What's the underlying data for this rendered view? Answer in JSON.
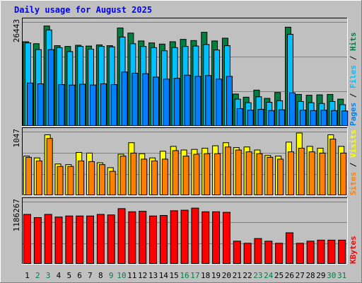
{
  "chart_data": [
    {
      "type": "bar",
      "title": "Daily usage for August 2025",
      "panel": "top",
      "categories": [
        "1",
        "2",
        "3",
        "4",
        "5",
        "6",
        "7",
        "8",
        "9",
        "10",
        "11",
        "12",
        "13",
        "14",
        "15",
        "16",
        "17",
        "18",
        "19",
        "20",
        "21",
        "22",
        "23",
        "24",
        "25",
        "26",
        "27",
        "28",
        "29",
        "30",
        "31"
      ],
      "ylim": [
        0,
        26443
      ],
      "yticks": [
        "26443"
      ],
      "legend_parts": [
        "Pages",
        "Files",
        "Hits"
      ],
      "series": [
        {
          "name": "Hits",
          "values": [
            21500,
            21000,
            25500,
            20500,
            20300,
            20600,
            20400,
            20700,
            20500,
            25000,
            23700,
            21700,
            21200,
            20900,
            21500,
            22100,
            21800,
            23900,
            21700,
            22400,
            8200,
            7400,
            9200,
            7100,
            8600,
            25200,
            8100,
            7900,
            8000,
            8100,
            6900
          ]
        },
        {
          "name": "Files",
          "values": [
            21200,
            19500,
            24500,
            20000,
            19000,
            20300,
            19600,
            20300,
            20200,
            22700,
            21000,
            20300,
            20000,
            19200,
            20000,
            20300,
            20400,
            20800,
            19400,
            20500,
            6900,
            6000,
            7500,
            6100,
            6500,
            23400,
            6300,
            6000,
            5800,
            6300,
            5500
          ]
        },
        {
          "name": "Pages",
          "values": [
            11000,
            10800,
            19500,
            10600,
            10500,
            10700,
            10500,
            10800,
            10600,
            13800,
            13500,
            13400,
            12500,
            12000,
            12200,
            13000,
            12700,
            12900,
            12000,
            12700,
            4500,
            4100,
            4300,
            4000,
            4200,
            8500,
            4100,
            4000,
            4100,
            4000,
            3900
          ]
        }
      ]
    },
    {
      "type": "bar",
      "panel": "middle",
      "categories": [
        "1",
        "2",
        "3",
        "4",
        "5",
        "6",
        "7",
        "8",
        "9",
        "10",
        "11",
        "12",
        "13",
        "14",
        "15",
        "16",
        "17",
        "18",
        "19",
        "20",
        "21",
        "22",
        "23",
        "24",
        "25",
        "26",
        "27",
        "28",
        "29",
        "30",
        "31"
      ],
      "ylim": [
        0,
        1047
      ],
      "yticks": [
        "1047"
      ],
      "legend_parts": [
        "Sites",
        "Visits"
      ],
      "series": [
        {
          "name": "Visits",
          "values": [
            650,
            620,
            1000,
            520,
            510,
            710,
            700,
            540,
            460,
            680,
            870,
            690,
            620,
            730,
            810,
            750,
            760,
            780,
            820,
            870,
            790,
            800,
            750,
            660,
            650,
            880,
            1030,
            810,
            780,
            1000,
            810
          ]
        },
        {
          "name": "Sites",
          "values": [
            630,
            570,
            940,
            480,
            480,
            570,
            560,
            510,
            400,
            650,
            700,
            600,
            570,
            600,
            740,
            650,
            680,
            690,
            690,
            800,
            750,
            720,
            690,
            630,
            600,
            720,
            780,
            720,
            700,
            930,
            700
          ]
        }
      ]
    },
    {
      "type": "bar",
      "panel": "bottom",
      "categories": [
        "1",
        "2",
        "3",
        "4",
        "5",
        "6",
        "7",
        "8",
        "9",
        "10",
        "11",
        "12",
        "13",
        "14",
        "15",
        "16",
        "17",
        "18",
        "19",
        "20",
        "21",
        "22",
        "23",
        "24",
        "25",
        "26",
        "27",
        "28",
        "29",
        "30",
        "31"
      ],
      "ylim": [
        0,
        1186267
      ],
      "yticks": [
        "1186267"
      ],
      "legend_parts": [
        "KBytes"
      ],
      "series": [
        {
          "name": "KBytes",
          "values": [
            950000,
            890000,
            950000,
            900000,
            920000,
            920000,
            920000,
            950000,
            940000,
            1060000,
            1000000,
            1010000,
            920000,
            930000,
            1020000,
            1030000,
            1070000,
            1000000,
            1000000,
            990000,
            440000,
            400000,
            490000,
            440000,
            400000,
            600000,
            400000,
            440000,
            460000,
            460000,
            460000
          ]
        }
      ]
    }
  ],
  "colors": {
    "hits": "#008040",
    "files": "#00c0ff",
    "pages": "#0080ff",
    "visits": "#ffff00",
    "sites": "#ff8000",
    "kbytes": "#ff0000",
    "title": "#0000ff",
    "background": "#c0c0c0",
    "chart_bg": "#c0c0c0"
  }
}
